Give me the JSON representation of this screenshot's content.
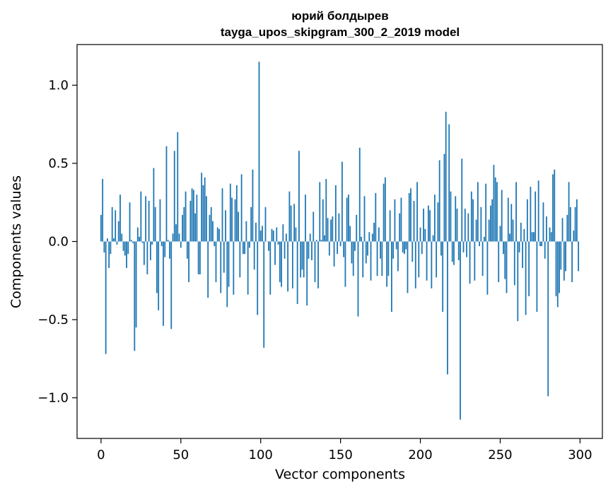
{
  "chart_data": {
    "type": "bar",
    "title": "юрий болдырев",
    "subtitle": "tayga_upos_skipgram_300_2_2019 model",
    "xlabel": "Vector components",
    "ylabel": "Components values",
    "xlim": [
      -15,
      314
    ],
    "ylim": [
      -1.26,
      1.26
    ],
    "xticks": [
      0,
      50,
      100,
      150,
      200,
      250,
      300
    ],
    "xtick_labels": [
      "0",
      "50",
      "100",
      "150",
      "200",
      "250",
      "300"
    ],
    "yticks": [
      -1.0,
      -0.5,
      0.0,
      0.5,
      1.0
    ],
    "ytick_labels": [
      "−1.0",
      "−0.5",
      "0.0",
      "0.5",
      "1.0"
    ],
    "grid": false,
    "bar_color": "#1f77b4",
    "x": "indices 0-299",
    "values": [
      0.17,
      0.4,
      -0.07,
      -0.72,
      0.02,
      -0.17,
      -0.08,
      0.22,
      0.02,
      0.2,
      -0.02,
      0.13,
      0.3,
      0.05,
      -0.06,
      -0.09,
      -0.17,
      -0.08,
      0.25,
      0.01,
      -0.01,
      -0.7,
      -0.55,
      0.09,
      0.03,
      0.32,
      -0.01,
      -0.15,
      0.29,
      -0.21,
      0.26,
      -0.12,
      -0.02,
      0.47,
      0.22,
      -0.33,
      -0.44,
      0.27,
      -0.03,
      -0.54,
      -0.1,
      0.61,
      0.01,
      -0.11,
      -0.56,
      0.05,
      0.58,
      0.11,
      0.7,
      0.05,
      -0.04,
      0.17,
      0.22,
      0.32,
      -0.11,
      -0.26,
      0.26,
      0.34,
      0.33,
      0.18,
      0.3,
      -0.21,
      -0.21,
      0.44,
      0.36,
      0.41,
      0.29,
      -0.36,
      0.17,
      0.22,
      0.13,
      -0.03,
      -0.26,
      0.09,
      0.08,
      -0.33,
      0.34,
      -0.2,
      0.2,
      -0.42,
      -0.29,
      0.37,
      0.28,
      -0.34,
      0.27,
      0.36,
      0.19,
      -0.23,
      0.43,
      -0.08,
      -0.08,
      0.13,
      -0.34,
      -0.04,
      0.22,
      0.46,
      -0.18,
      0.12,
      -0.47,
      1.15,
      0.07,
      0.1,
      -0.68,
      0.22,
      0.0,
      -0.06,
      -0.34,
      0.08,
      0.07,
      -0.15,
      0.09,
      -0.02,
      -0.26,
      -0.29,
      0.11,
      -0.11,
      0.05,
      -0.32,
      0.32,
      0.23,
      -0.3,
      0.24,
      0.09,
      -0.4,
      0.58,
      -0.23,
      -0.18,
      -0.23,
      0.3,
      -0.41,
      -0.11,
      0.05,
      -0.12,
      0.19,
      -0.26,
      0.01,
      -0.3,
      0.38,
      0.01,
      0.27,
      0.04,
      0.4,
      0.15,
      -0.09,
      0.14,
      0.16,
      -0.16,
      0.36,
      -0.08,
      0.18,
      -0.03,
      0.51,
      -0.1,
      -0.29,
      0.28,
      0.3,
      0.1,
      -0.14,
      -0.22,
      -0.06,
      0.17,
      -0.48,
      0.6,
      0.03,
      -0.23,
      0.29,
      -0.14,
      -0.09,
      0.06,
      -0.25,
      0.05,
      0.12,
      0.31,
      -0.22,
      0.09,
      -0.11,
      -0.22,
      0.37,
      0.41,
      -0.29,
      -0.22,
      0.2,
      -0.45,
      -0.11,
      0.27,
      -0.05,
      -0.19,
      0.18,
      0.28,
      -0.07,
      -0.08,
      -0.05,
      -0.33,
      0.31,
      0.34,
      -0.13,
      0.26,
      -0.3,
      0.38,
      -0.23,
      0.09,
      -0.08,
      0.21,
      0.08,
      -0.25,
      0.23,
      0.2,
      -0.3,
      0.04,
      0.3,
      -0.23,
      0.25,
      0.52,
      -0.09,
      -0.45,
      0.56,
      0.83,
      -0.85,
      0.75,
      0.32,
      -0.13,
      -0.15,
      0.29,
      0.21,
      -0.12,
      -1.14,
      0.53,
      -0.07,
      0.21,
      -0.1,
      0.18,
      -0.27,
      0.32,
      0.27,
      -0.25,
      0.14,
      0.38,
      -0.03,
      0.22,
      -0.22,
      0.03,
      0.37,
      -0.34,
      0.14,
      0.23,
      0.27,
      0.49,
      0.41,
      0.38,
      -0.26,
      0.1,
      0.33,
      -0.08,
      -0.24,
      -0.33,
      0.28,
      0.05,
      0.24,
      0.14,
      -0.28,
      0.38,
      -0.51,
      -0.07,
      0.12,
      -0.17,
      0.08,
      -0.47,
      0.27,
      -0.35,
      0.35,
      0.06,
      0.06,
      0.32,
      -0.45,
      0.39,
      -0.03,
      -0.03,
      0.25,
      -0.11,
      0.16,
      -0.99,
      0.09,
      0.06,
      0.43,
      0.46,
      -0.35,
      -0.42,
      -0.33,
      -0.18,
      0.15,
      -0.25,
      -0.19,
      0.17,
      0.38,
      0.22,
      -0.26,
      0.07,
      0.22,
      0.27,
      -0.19
    ]
  }
}
